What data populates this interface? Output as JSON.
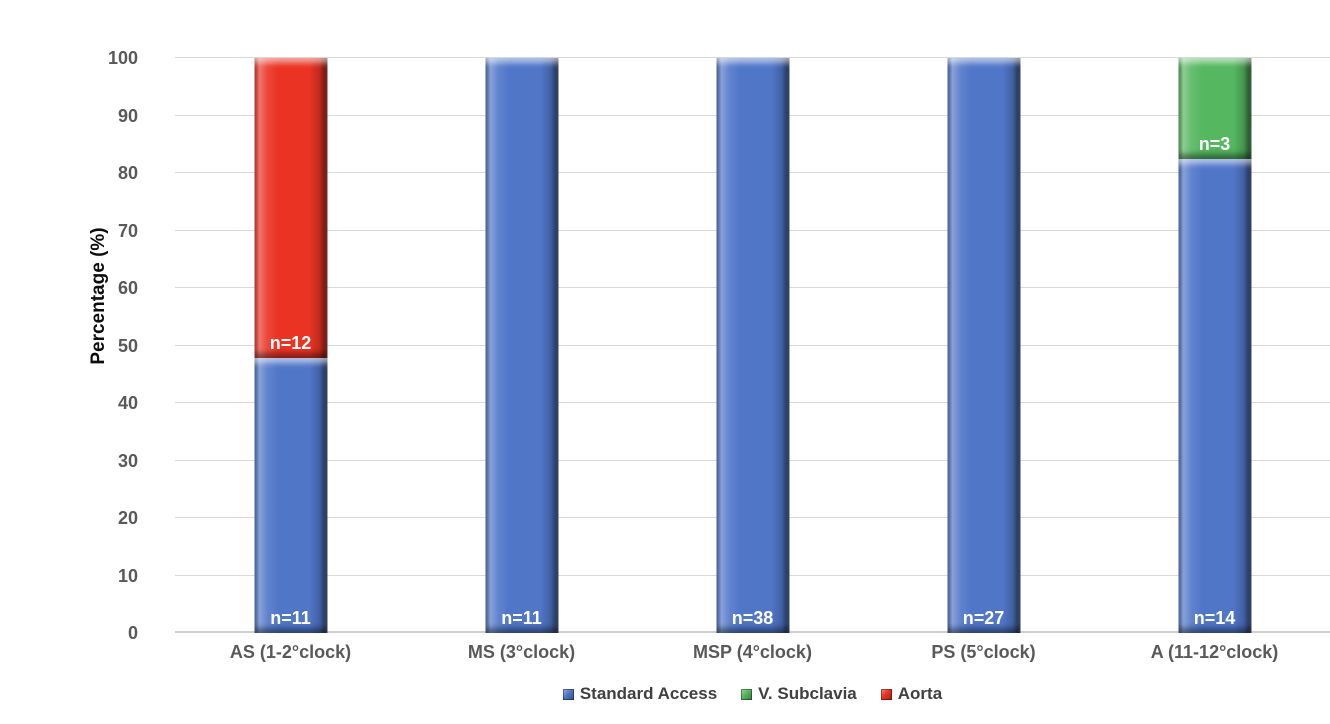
{
  "chart_data": {
    "type": "bar",
    "stacked": true,
    "title": "",
    "xlabel": "",
    "ylabel": "Percentage (%)",
    "ylim": [
      0,
      100
    ],
    "yticks": [
      0,
      10,
      20,
      30,
      40,
      50,
      60,
      70,
      80,
      90,
      100
    ],
    "grid": true,
    "legend_position": "bottom",
    "categories": [
      "AS (1-2°clock)",
      "MS (3°clock)",
      "MSP (4°clock)",
      "PS (5°clock)",
      "A (11-12°clock)"
    ],
    "series": [
      {
        "name": "Standard Access",
        "color": "#5076C8",
        "values": [
          47.8,
          100,
          100,
          100,
          82.4
        ],
        "labels": [
          "n=11",
          "n=11",
          "n=38",
          "n=27",
          "n=14"
        ]
      },
      {
        "name": "V. Subclavia",
        "color": "#55B75F",
        "values": [
          0,
          0,
          0,
          0,
          17.6
        ],
        "labels": [
          "",
          "",
          "",
          "",
          "n=3"
        ]
      },
      {
        "name": "Aorta",
        "color": "#EA3323",
        "values": [
          52.2,
          0,
          0,
          0,
          0
        ],
        "labels": [
          "n=12",
          "",
          "",
          "",
          ""
        ]
      }
    ],
    "colors": {
      "gridline": "#d9d9d9",
      "axis_text": "#595959",
      "bar_label_text": "#ffffff"
    }
  }
}
